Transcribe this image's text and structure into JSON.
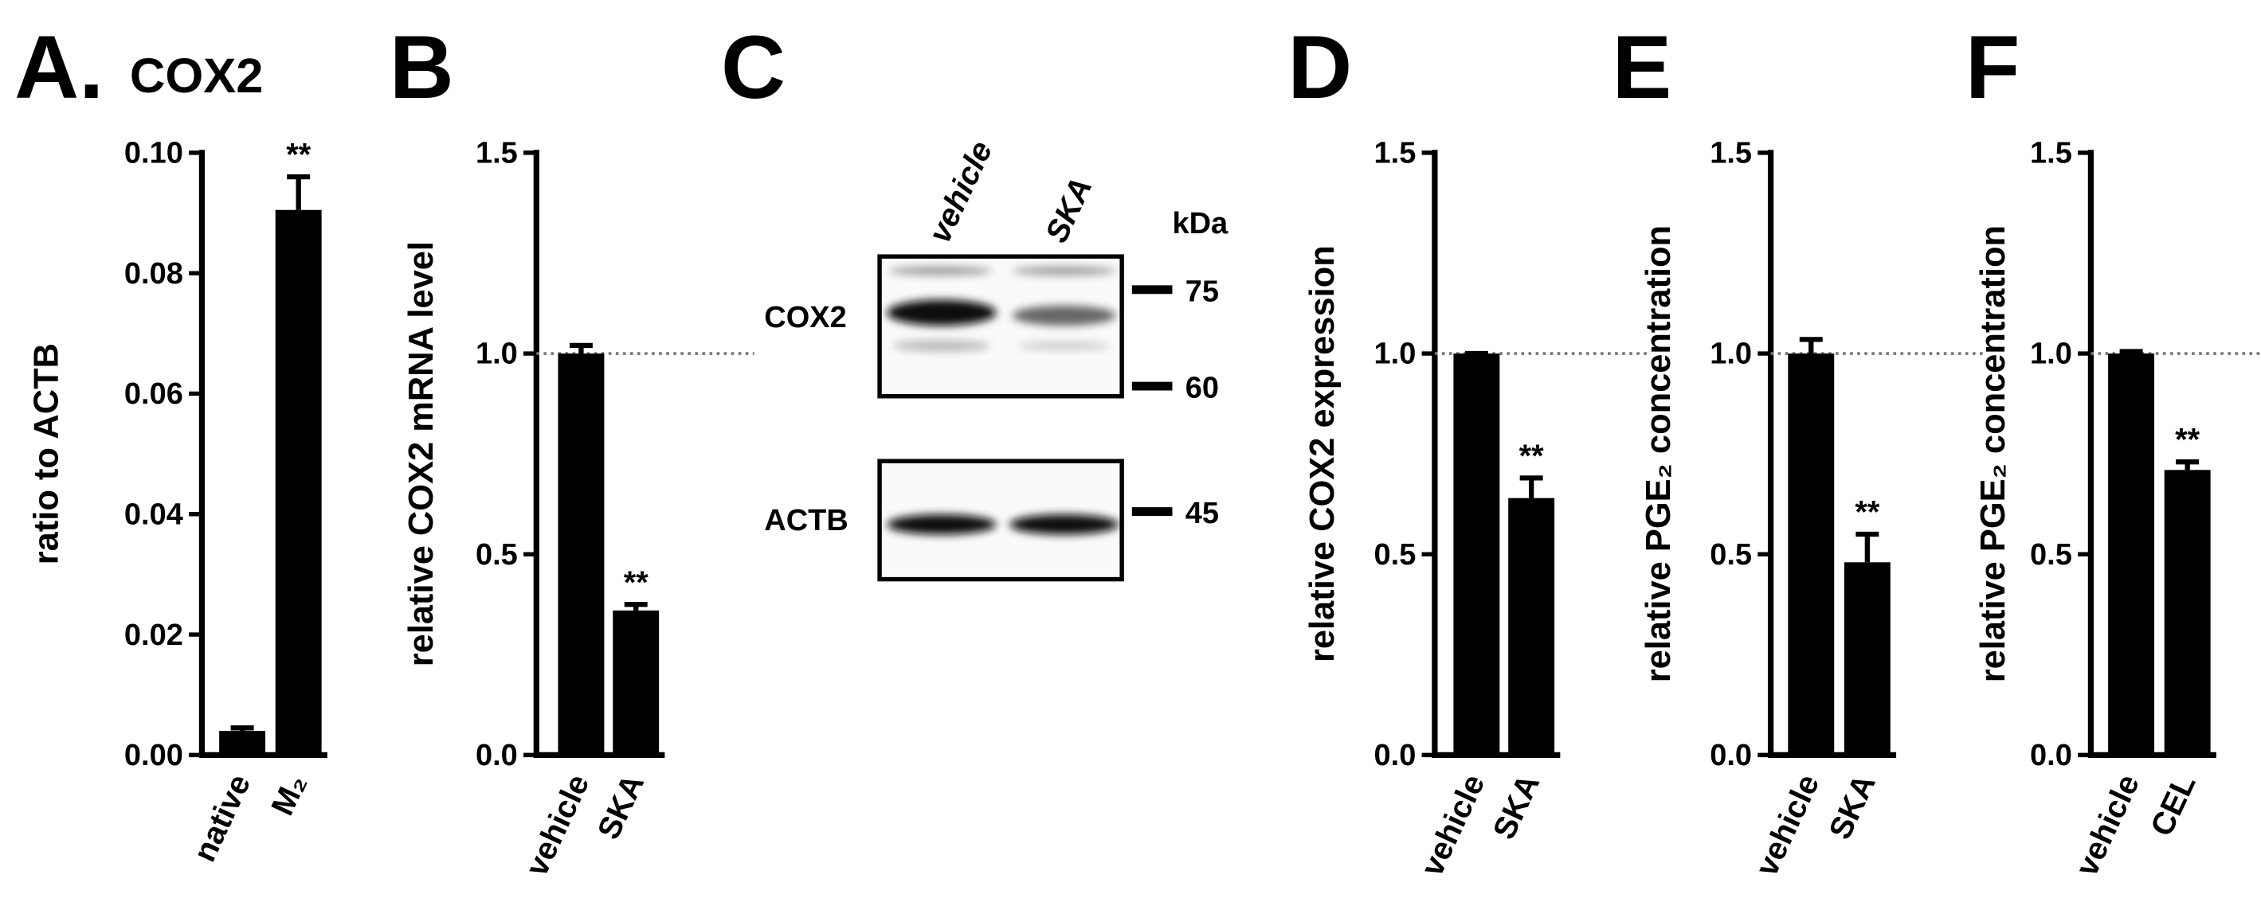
{
  "chart_data": [
    {
      "type": "bar",
      "panel": "A.",
      "title": "COX2",
      "ylabel": "ratio to ACTB",
      "categories": [
        "native",
        "M₂"
      ],
      "values": [
        0.004,
        0.0905
      ],
      "errors": [
        0.0005,
        0.0055
      ],
      "significance": [
        null,
        "**"
      ],
      "color": "#000000",
      "ylim": [
        0,
        0.1
      ],
      "yticks": [
        {
          "value": 0,
          "label": "0.00"
        },
        {
          "value": 0.02,
          "label": "0.02"
        },
        {
          "value": 0.04,
          "label": "0.04"
        },
        {
          "value": 0.06,
          "label": "0.06"
        },
        {
          "value": 0.08,
          "label": "0.08"
        },
        {
          "value": 0.1,
          "label": "0.10"
        }
      ]
    },
    {
      "type": "bar",
      "panel": "B",
      "ylabel": "relative COX2 mRNA level",
      "categories": [
        "vehicle",
        "SKA"
      ],
      "values": [
        1.0,
        0.36
      ],
      "errors": [
        0.02,
        0.015
      ],
      "significance": [
        null,
        "**"
      ],
      "color": "#000000",
      "reference_line": 1,
      "ylim": [
        0,
        1.5
      ],
      "yticks": [
        {
          "value": 0,
          "label": "0.0"
        },
        0.5,
        {
          "value": 1,
          "label": "1.0"
        },
        1.5
      ]
    },
    {
      "type": "blot",
      "panel": "C",
      "lanes": [
        "vehicle",
        "SKA"
      ],
      "unit": "kDa",
      "rows": [
        {
          "label": "COX2",
          "markers": [
            75,
            60
          ]
        },
        {
          "label": "ACTB",
          "markers": [
            45
          ]
        }
      ]
    },
    {
      "type": "bar",
      "panel": "D",
      "ylabel": "relative COX2 expression",
      "categories": [
        "vehicle",
        "SKA"
      ],
      "values": [
        1.0,
        0.64
      ],
      "errors": [
        0,
        0.05
      ],
      "significance": [
        null,
        "**"
      ],
      "color": "#000000",
      "reference_line": 1,
      "ylim": [
        0,
        1.5
      ],
      "yticks": [
        {
          "value": 0,
          "label": "0.0"
        },
        0.5,
        {
          "value": 1,
          "label": "1.0"
        },
        1.5
      ]
    },
    {
      "type": "bar",
      "panel": "E",
      "ylabel": "relative PGE₂ concentration",
      "categories": [
        "vehicle",
        "SKA"
      ],
      "values": [
        1.0,
        0.48
      ],
      "errors": [
        0.035,
        0.07
      ],
      "significance": [
        null,
        "**"
      ],
      "color": "#000000",
      "reference_line": 1,
      "ylim": [
        0,
        1.5
      ],
      "yticks": [
        {
          "value": 0,
          "label": "0.0"
        },
        0.5,
        {
          "value": 1,
          "label": "1.0"
        },
        1.5
      ]
    },
    {
      "type": "bar",
      "panel": "F",
      "ylabel": "relative PGE₂ concentration",
      "categories": [
        "vehicle",
        "CEL"
      ],
      "values": [
        1.0,
        0.71
      ],
      "errors": [
        0.005,
        0.02
      ],
      "significance": [
        null,
        "**"
      ],
      "color": "#000000",
      "reference_line": 1,
      "ylim": [
        0,
        1.5
      ],
      "yticks": [
        {
          "value": 0,
          "label": "0.0"
        },
        0.5,
        {
          "value": 1,
          "label": "1.0"
        },
        1.5
      ]
    }
  ]
}
